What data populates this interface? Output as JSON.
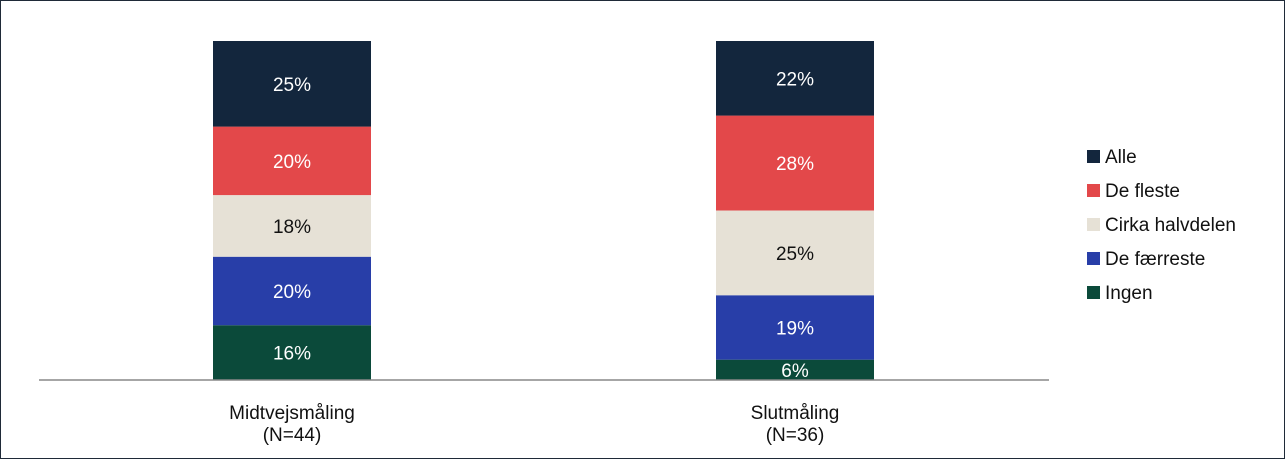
{
  "chart_data": {
    "type": "bar",
    "stacked": true,
    "normalized": true,
    "categories": [
      "Midtvejsmåling\n(N=44)",
      "Slutmåling\n(N=36)"
    ],
    "series": [
      {
        "name": "Ingen",
        "values": [
          16,
          6
        ],
        "color": "#0b4a3a",
        "label_color": "#ffffff"
      },
      {
        "name": "De færreste",
        "values": [
          20,
          19
        ],
        "color": "#283ea8",
        "label_color": "#ffffff"
      },
      {
        "name": "Cirka halvdelen",
        "values": [
          18,
          25
        ],
        "color": "#e6e1d6",
        "label_color": "#111111"
      },
      {
        "name": "De fleste",
        "values": [
          20,
          28
        ],
        "color": "#e3484a",
        "label_color": "#ffffff"
      },
      {
        "name": "Alle",
        "values": [
          25,
          22
        ],
        "color": "#13263d",
        "label_color": "#ffffff"
      }
    ],
    "value_suffix": "%",
    "legend_order": [
      "Alle",
      "De fleste",
      "Cirka halvdelen",
      "De færreste",
      "Ingen"
    ],
    "legend_position": "right",
    "grid": false
  }
}
